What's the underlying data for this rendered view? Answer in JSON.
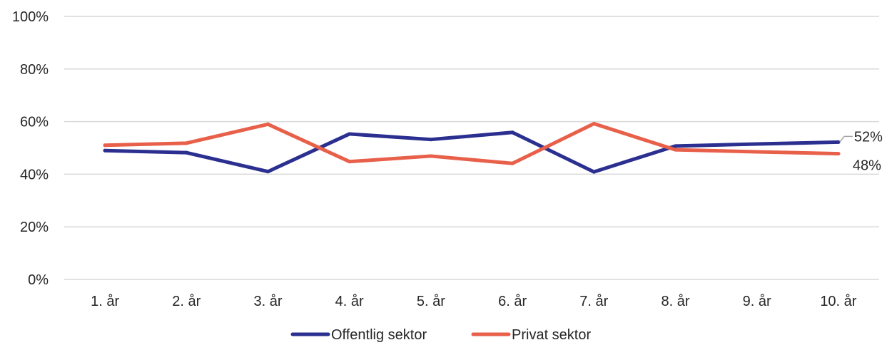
{
  "chart_data": {
    "type": "line",
    "categories": [
      "1. år",
      "2. år",
      "3. år",
      "4. år",
      "5. år",
      "6. år",
      "7. år",
      "8. år",
      "9. år",
      "10. år"
    ],
    "series": [
      {
        "name": "Offentlig sektor",
        "color": "#2b2f8f",
        "values": [
          0.49,
          0.482,
          0.41,
          0.553,
          0.532,
          0.559,
          0.409,
          0.507,
          0.515,
          0.522
        ],
        "end_label": "52%"
      },
      {
        "name": "Privat sektor",
        "color": "#e8604a",
        "values": [
          0.51,
          0.518,
          0.59,
          0.448,
          0.469,
          0.441,
          0.592,
          0.493,
          0.485,
          0.478
        ],
        "end_label": "48%"
      }
    ],
    "ylim": [
      0,
      1
    ],
    "yticks": [
      0,
      0.2,
      0.4,
      0.6,
      0.8,
      1.0
    ],
    "ytick_labels": [
      "0%",
      "20%",
      "40%",
      "60%",
      "80%",
      "100%"
    ],
    "grid": true,
    "legend": "bottom"
  }
}
